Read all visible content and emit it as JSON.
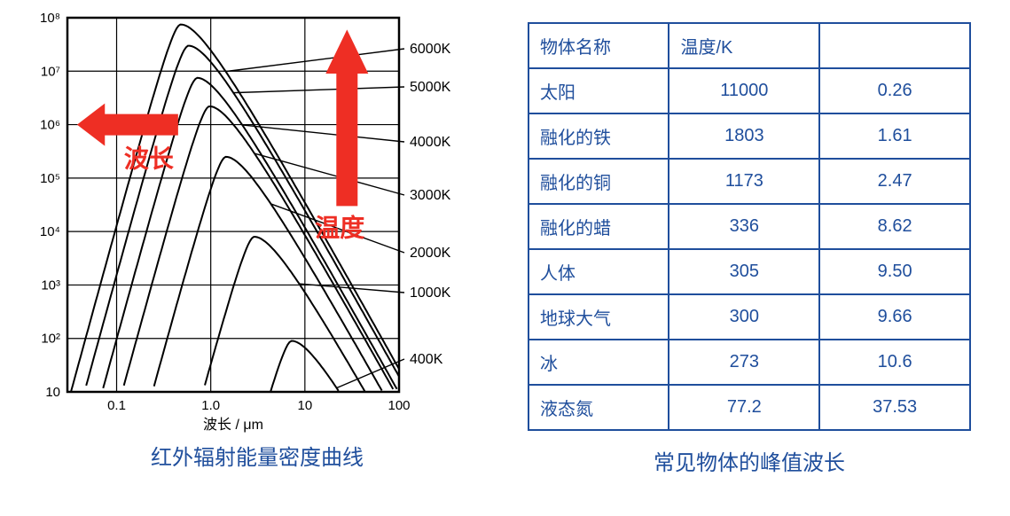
{
  "chart": {
    "caption": "红外辐射能量密度曲线",
    "xlabel": "波长 / μm",
    "xlim": [
      0.03,
      100
    ],
    "ylim": [
      10,
      100000000.0
    ],
    "xticks_labels": [
      "0.1",
      "1.0",
      "10",
      "100"
    ],
    "xticks_pos": [
      0.1,
      1.0,
      10,
      100
    ],
    "yticks_labels": [
      "10",
      "10²",
      "10³",
      "10⁴",
      "10⁵",
      "10⁶",
      "10⁷",
      "10⁸"
    ],
    "yticks_pos": [
      10,
      100,
      1000,
      10000,
      100000,
      1000000,
      10000000,
      100000000
    ],
    "colors": {
      "axis": "#000000",
      "grid": "#000000",
      "curve": "#000000",
      "arrow": "#ee2e24",
      "anno_text": "#ee2e24",
      "background": "#ffffff"
    },
    "line_width_frame": 2.5,
    "line_width_grid": 1.2,
    "line_width_curve": 2,
    "annotations": {
      "left": "波长",
      "right": "温度"
    },
    "curves": [
      {
        "label": "6000K",
        "peak_x": 0.48,
        "peak_y": 75000000.0,
        "label_x": 442,
        "label_y": 45
      },
      {
        "label": "5000K",
        "peak_x": 0.58,
        "peak_y": 30000000.0,
        "label_x": 442,
        "label_y": 88
      },
      {
        "label": "4000K",
        "peak_x": 0.72,
        "peak_y": 7500000.0,
        "label_x": 442,
        "label_y": 150
      },
      {
        "label": "3000K",
        "peak_x": 0.97,
        "peak_y": 2200000.0,
        "label_x": 442,
        "label_y": 210
      },
      {
        "label": "2000K",
        "peak_x": 1.45,
        "peak_y": 250000.0,
        "label_x": 442,
        "label_y": 275
      },
      {
        "label": "1000K",
        "peak_x": 2.9,
        "peak_y": 8000.0,
        "label_x": 442,
        "label_y": 320
      },
      {
        "label": "400K",
        "peak_x": 7.24,
        "peak_y": 90,
        "label_x": 442,
        "label_y": 395
      }
    ]
  },
  "table": {
    "caption": "常见物体的峰值波长",
    "header": {
      "name": "物体名称",
      "temp": "温度/K",
      "wave": ""
    },
    "rows": [
      {
        "name": "太阳",
        "temp": "11000",
        "wave": "0.26"
      },
      {
        "name": "融化的铁",
        "temp": "1803",
        "wave": "1.61"
      },
      {
        "name": "融化的铜",
        "temp": "1173",
        "wave": "2.47"
      },
      {
        "name": "融化的蜡",
        "temp": "336",
        "wave": "8.62"
      },
      {
        "name": "人体",
        "temp": "305",
        "wave": "9.50"
      },
      {
        "name": "地球大气",
        "temp": "300",
        "wave": "9.66"
      },
      {
        "name": "冰",
        "temp": "273",
        "wave": "10.6"
      },
      {
        "name": "液态氮",
        "temp": "77.2",
        "wave": "37.53"
      }
    ],
    "colors": {
      "border": "#1f4e9c",
      "text": "#1f4e9c",
      "background": "#ffffff"
    },
    "font_size": 20
  },
  "caption_style": {
    "color": "#1f4e9c",
    "font_size": 24
  }
}
